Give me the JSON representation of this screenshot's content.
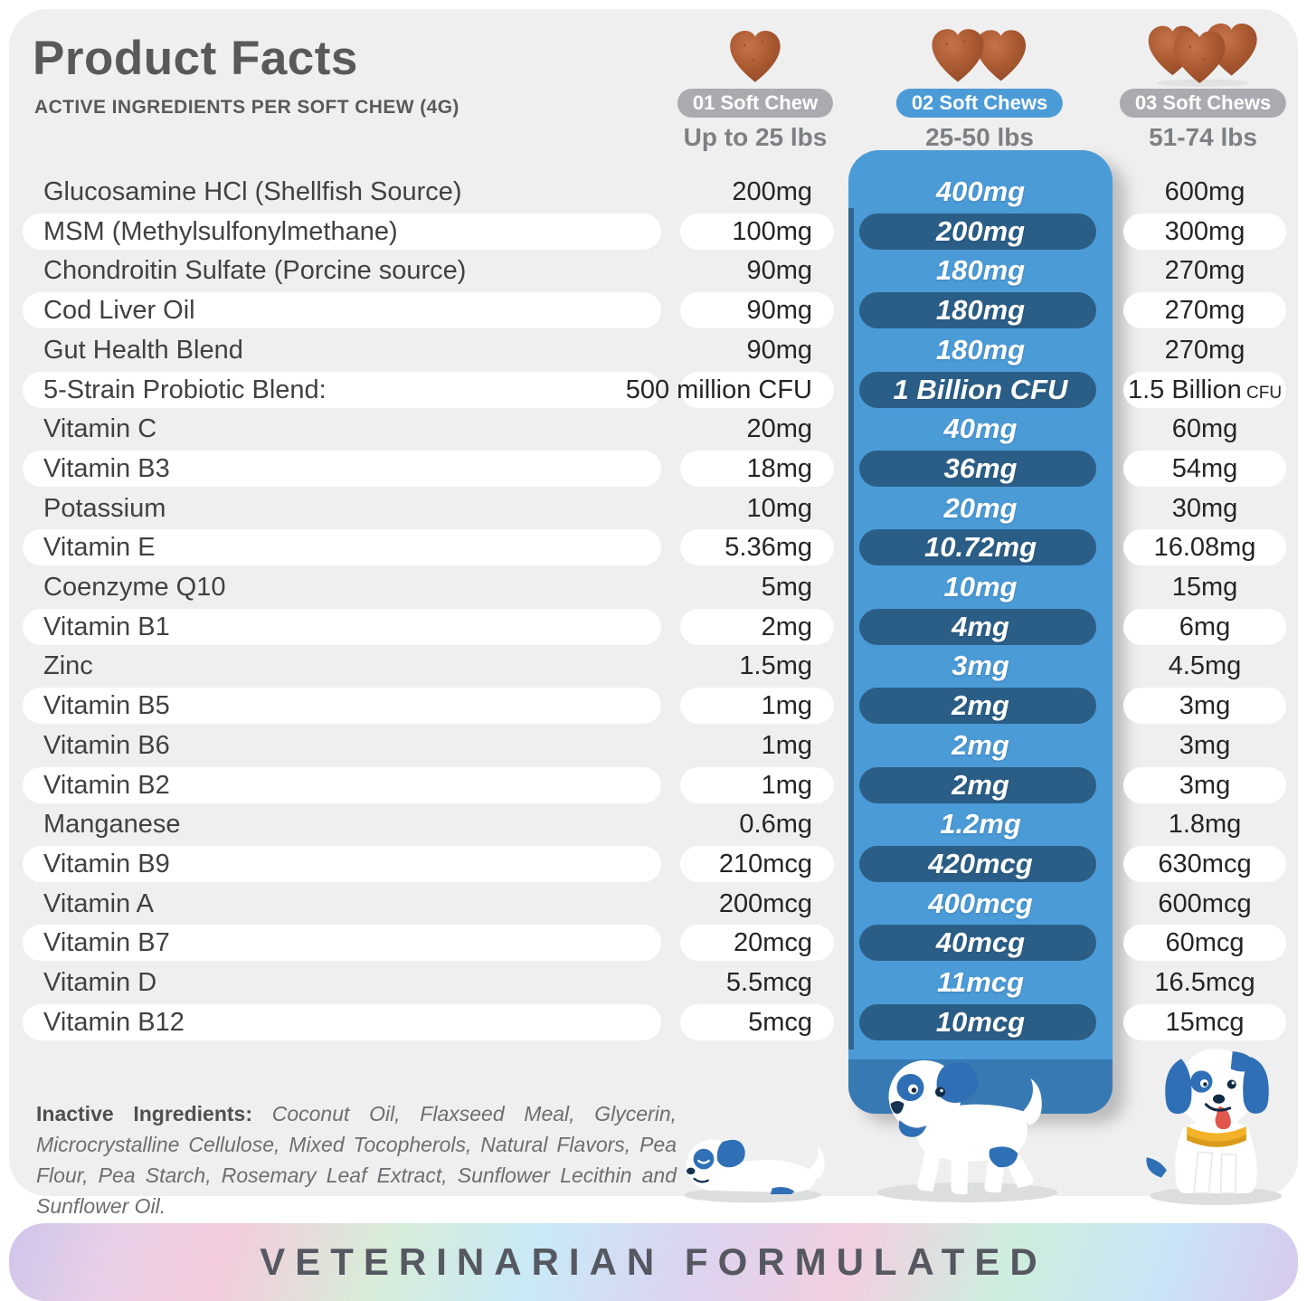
{
  "header": {
    "title": "Product Facts",
    "subtitle": "ACTIVE INGREDIENTS PER SOFT CHEW (4G)"
  },
  "dose_columns": [
    {
      "badge": "01 Soft Chew",
      "weight_range": "Up to 25 lbs",
      "chew_count": 1
    },
    {
      "badge": "02 Soft Chews",
      "weight_range": "25-50 lbs",
      "chew_count": 2
    },
    {
      "badge": "03 Soft Chews",
      "weight_range": "51-74 lbs",
      "chew_count": 3
    }
  ],
  "table": {
    "rows": [
      {
        "name": "Glucosamine HCl (Shellfish Source)",
        "v1": "200mg",
        "v2": "400mg",
        "v3": "600mg",
        "highlight": false
      },
      {
        "name": "MSM (Methylsulfonylmethane)",
        "v1": "100mg",
        "v2": "200mg",
        "v3": "300mg",
        "highlight": true
      },
      {
        "name": "Chondroitin Sulfate (Porcine source)",
        "v1": "90mg",
        "v2": "180mg",
        "v3": "270mg",
        "highlight": false
      },
      {
        "name": "Cod Liver Oil",
        "v1": "90mg",
        "v2": "180mg",
        "v3": "270mg",
        "highlight": true
      },
      {
        "name": "Gut Health Blend",
        "v1": "90mg",
        "v2": "180mg",
        "v3": "270mg",
        "highlight": false
      },
      {
        "name": "5-Strain Probiotic Blend:",
        "v1": "500 million CFU",
        "v2": "1 Billion CFU",
        "v3": "1.5 Billion",
        "v3_suffix": "CFU",
        "highlight": true
      },
      {
        "name": "Vitamin C",
        "v1": "20mg",
        "v2": "40mg",
        "v3": "60mg",
        "highlight": false
      },
      {
        "name": "Vitamin B3",
        "v1": "18mg",
        "v2": "36mg",
        "v3": "54mg",
        "highlight": true
      },
      {
        "name": "Potassium",
        "v1": "10mg",
        "v2": "20mg",
        "v3": "30mg",
        "highlight": false
      },
      {
        "name": "Vitamin E",
        "v1": "5.36mg",
        "v2": "10.72mg",
        "v3": "16.08mg",
        "highlight": true
      },
      {
        "name": "Coenzyme Q10",
        "v1": "5mg",
        "v2": "10mg",
        "v3": "15mg",
        "highlight": false
      },
      {
        "name": "Vitamin B1",
        "v1": "2mg",
        "v2": "4mg",
        "v3": "6mg",
        "highlight": true
      },
      {
        "name": "Zinc",
        "v1": "1.5mg",
        "v2": "3mg",
        "v3": "4.5mg",
        "highlight": false
      },
      {
        "name": "Vitamin B5",
        "v1": "1mg",
        "v2": "2mg",
        "v3": "3mg",
        "highlight": true
      },
      {
        "name": "Vitamin B6",
        "v1": "1mg",
        "v2": "2mg",
        "v3": "3mg",
        "highlight": false
      },
      {
        "name": "Vitamin B2",
        "v1": "1mg",
        "v2": "2mg",
        "v3": "3mg",
        "highlight": true
      },
      {
        "name": "Manganese",
        "v1": "0.6mg",
        "v2": "1.2mg",
        "v3": "1.8mg",
        "highlight": false
      },
      {
        "name": "Vitamin B9",
        "v1": "210mcg",
        "v2": "420mcg",
        "v3": "630mcg",
        "highlight": true
      },
      {
        "name": "Vitamin A",
        "v1": "200mcg",
        "v2": "400mcg",
        "v3": "600mcg",
        "highlight": false
      },
      {
        "name": "Vitamin B7",
        "v1": "20mcg",
        "v2": "40mcg",
        "v3": "60mcg",
        "highlight": true
      },
      {
        "name": "Vitamin D",
        "v1": "5.5mcg",
        "v2": "11mcg",
        "v3": "16.5mcg",
        "highlight": false
      },
      {
        "name": "Vitamin B12",
        "v1": "5mcg",
        "v2": "10mcg",
        "v3": "15mcg",
        "highlight": true
      }
    ]
  },
  "inactive_ingredients": {
    "label": "Inactive Ingredients:",
    "text": "Coconut Oil, Flaxseed Meal, Glycerin, Microcrystalline Cellulose, Mixed Tocopherols, Natural Flavors, Pea Flour, Pea Starch, Rosemary Leaf Extract, Sunflower Lecithin and Sunflower Oil."
  },
  "banner": {
    "text": "VETERINARIAN FORMULATED"
  },
  "colors": {
    "card_background": "#efeff0",
    "accent_blue": "#4b9bd7",
    "dark_navy_pill": "#2b5e86",
    "ribbon_lip_blue": "#3779b2",
    "badge_gray": "#a9abae",
    "chew_brown": "#ad5c33",
    "title_gray": "#58595b",
    "dog_blue": "#2f6fb5",
    "collar_yellow": "#f3b229"
  },
  "icons": {
    "soft_chew": "heart-shaped-soft-chew-icon",
    "dogs": [
      "small-puppy-lying",
      "medium-dog-walking",
      "large-dog-sitting"
    ]
  }
}
